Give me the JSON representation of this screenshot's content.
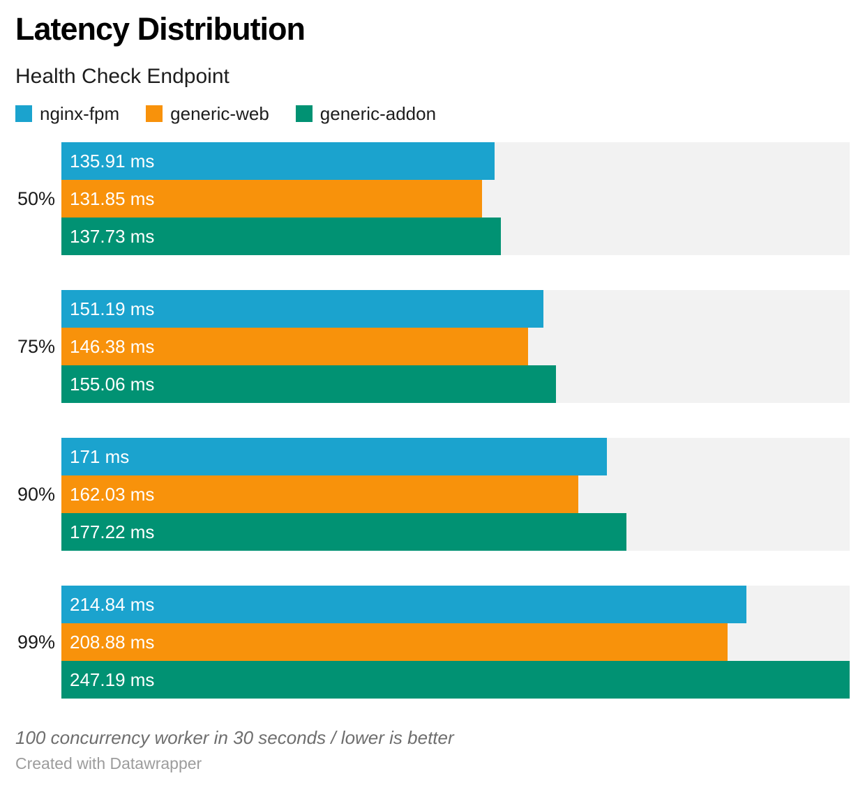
{
  "header": {
    "title": "Latency Distribution",
    "subtitle": "Health Check Endpoint"
  },
  "legend": [
    {
      "label": "nginx-fpm",
      "color": "#1ba3ce"
    },
    {
      "label": "generic-web",
      "color": "#f8920b"
    },
    {
      "label": "generic-addon",
      "color": "#019273"
    }
  ],
  "chart_data": {
    "type": "bar",
    "orientation": "horizontal",
    "title": "Latency Distribution",
    "subtitle": "Health Check Endpoint",
    "categories": [
      "50%",
      "75%",
      "90%",
      "99%"
    ],
    "series": [
      {
        "name": "nginx-fpm",
        "color": "#1ba3ce",
        "values": [
          135.91,
          151.19,
          171,
          214.84
        ],
        "labels": [
          "135.91 ms",
          "151.19 ms",
          "171 ms",
          "214.84 ms"
        ]
      },
      {
        "name": "generic-web",
        "color": "#f8920b",
        "values": [
          131.85,
          146.38,
          162.03,
          208.88
        ],
        "labels": [
          "131.85 ms",
          "146.38 ms",
          "162.03 ms",
          "208.88 ms"
        ]
      },
      {
        "name": "generic-addon",
        "color": "#019273",
        "values": [
          137.73,
          155.06,
          177.22,
          247.19
        ],
        "labels": [
          "137.73 ms",
          "155.06 ms",
          "177.22 ms",
          "247.19 ms"
        ]
      }
    ],
    "unit": "ms",
    "xmin": 0,
    "xmax": 247.19,
    "track_color": "#f2f2f2",
    "value_labels_inside": true,
    "legend_position": "top",
    "grid": false
  },
  "footer": {
    "note": "100 concurrency worker in 30 seconds / lower is better",
    "attribution": "Created with Datawrapper"
  }
}
